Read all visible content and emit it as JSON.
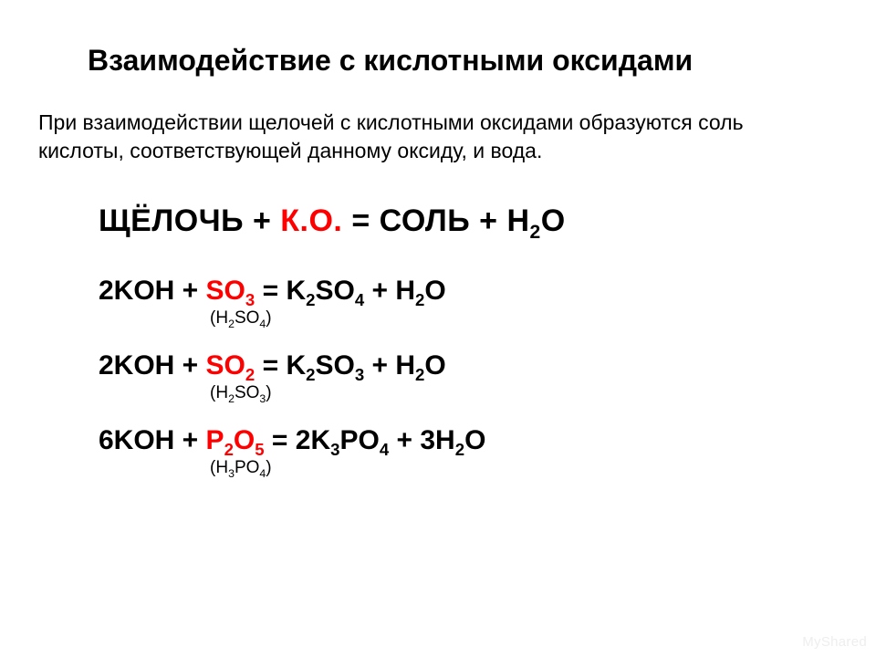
{
  "colors": {
    "text": "#000000",
    "highlight": "#ff0000",
    "background": "#ffffff",
    "watermark": "#eeeeee"
  },
  "typography": {
    "family": "Arial",
    "title_size_pt": 32,
    "subtitle_size_pt": 23,
    "scheme_size_pt": 34,
    "equation_size_pt": 30,
    "small_size_pt": 19
  },
  "title": "Взаимодействие с кислотными оксидами",
  "subtitle": "При взаимодействии щелочей с кислотными оксидами образуются соль кислоты, соответствующей данному оксиду, и вода.",
  "scheme": {
    "lhs1": "ЩЁЛОЧЬ + ",
    "ko": "К.О.",
    "rhs": " = СОЛЬ + H",
    "sub": "2",
    "tail": "O"
  },
  "equations": [
    {
      "coef1": "2KOH + ",
      "ox": "SO",
      "ox_sub": "3",
      "mid": " = K",
      "s1": "2",
      "mid2": "SO",
      "s2": "4",
      "mid3": " + H",
      "s3": "2",
      "tail": "O",
      "note_open": "(H",
      "note_s1": "2",
      "note_mid": "SO",
      "note_s2": "4",
      "note_close": ")"
    },
    {
      "coef1": "2KOH + ",
      "ox": "SO",
      "ox_sub": "2",
      "mid": " = K",
      "s1": "2",
      "mid2": "SO",
      "s2": "3",
      "mid3": " + H",
      "s3": "2",
      "tail": "O",
      "note_open": "(H",
      "note_s1": "2",
      "note_mid": "SO",
      "note_s2": "3",
      "note_close": ")"
    },
    {
      "coef1": "6KOH + ",
      "ox": "P",
      "ox_sub_a": "2",
      "ox2": "O",
      "ox_sub_b": "5",
      "mid": " = 2K",
      "s1": "3",
      "mid2": "PO",
      "s2": "4",
      "mid3": " + 3H",
      "s3": "2",
      "tail": "O",
      "note_open": "(H",
      "note_s1": "3",
      "note_mid": "PO",
      "note_s2": "4",
      "note_close": ")"
    }
  ],
  "watermark": "MyShared"
}
